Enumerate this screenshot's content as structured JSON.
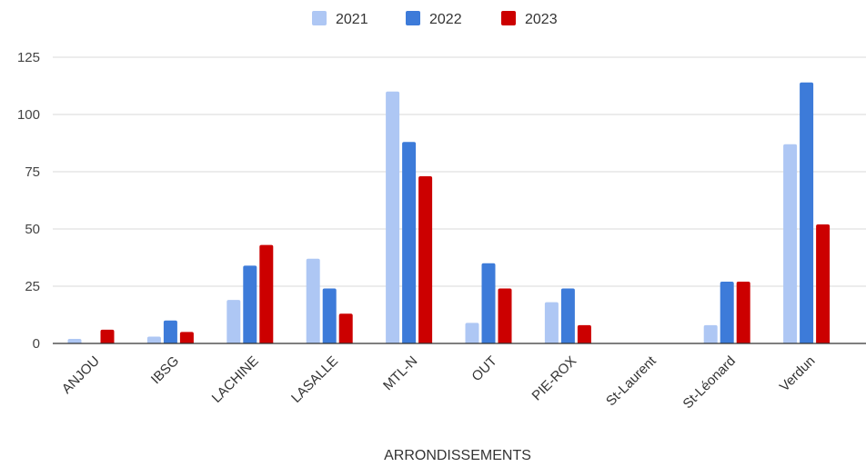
{
  "chart_data": {
    "type": "bar",
    "categories": [
      "ANJOU",
      "IBSG",
      "LACHINE",
      "LASALLE",
      "MTL-N",
      "OUT",
      "PIE-ROX",
      "St-Laurent",
      "St-Léonard",
      "Verdun"
    ],
    "series": [
      {
        "name": "2021",
        "color": "#aec7f4",
        "values": [
          2,
          3,
          19,
          37,
          110,
          9,
          18,
          0,
          8,
          87
        ]
      },
      {
        "name": "2022",
        "color": "#3d7bd9",
        "values": [
          0,
          10,
          34,
          24,
          88,
          35,
          24,
          0,
          27,
          114
        ]
      },
      {
        "name": "2023",
        "color": "#cc0000",
        "values": [
          6,
          5,
          43,
          13,
          73,
          24,
          8,
          0,
          27,
          52
        ]
      }
    ],
    "xlabel": "ARRONDISSEMENTS",
    "ylabel": "",
    "ylim": [
      0,
      125
    ],
    "yticks": [
      0,
      25,
      50,
      75,
      100,
      125
    ],
    "grid": true,
    "legend_position": "top"
  }
}
